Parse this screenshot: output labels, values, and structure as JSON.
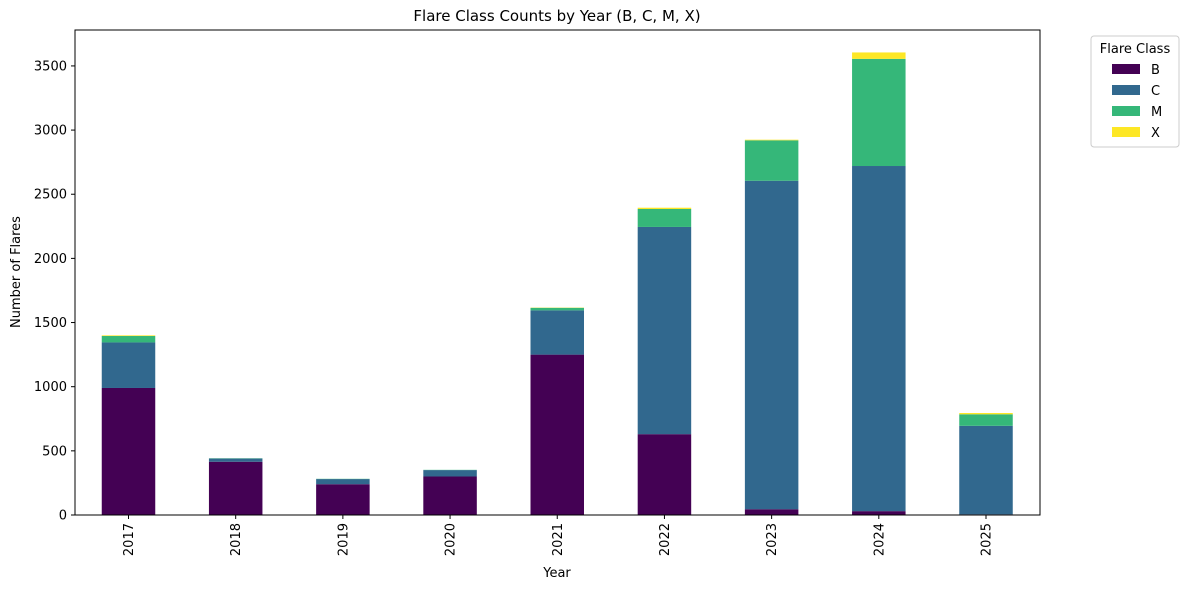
{
  "chart_data": {
    "type": "bar",
    "stacked": true,
    "title": "Flare Class Counts by Year (B, C, M, X)",
    "xlabel": "Year",
    "ylabel": "Number of Flares",
    "ylim": [
      0,
      3780
    ],
    "yticks": [
      0,
      500,
      1000,
      1500,
      2000,
      2500,
      3000,
      3500
    ],
    "grid": false,
    "legend": {
      "title": "Flare Class",
      "placement": "outside-top-right"
    },
    "categories": [
      "2017",
      "2018",
      "2019",
      "2020",
      "2021",
      "2022",
      "2023",
      "2024",
      "2025"
    ],
    "series": [
      {
        "name": "B",
        "color": "#440154",
        "values": [
          990,
          415,
          240,
          300,
          1250,
          630,
          45,
          30,
          5
        ]
      },
      {
        "name": "C",
        "color": "#31688e",
        "values": [
          355,
          25,
          40,
          50,
          345,
          1615,
          2560,
          2690,
          690
        ]
      },
      {
        "name": "M",
        "color": "#35b779",
        "values": [
          50,
          2,
          2,
          2,
          20,
          140,
          315,
          835,
          90
        ]
      },
      {
        "name": "X",
        "color": "#fde725",
        "values": [
          5,
          0,
          0,
          0,
          2,
          10,
          5,
          50,
          10
        ]
      }
    ]
  }
}
